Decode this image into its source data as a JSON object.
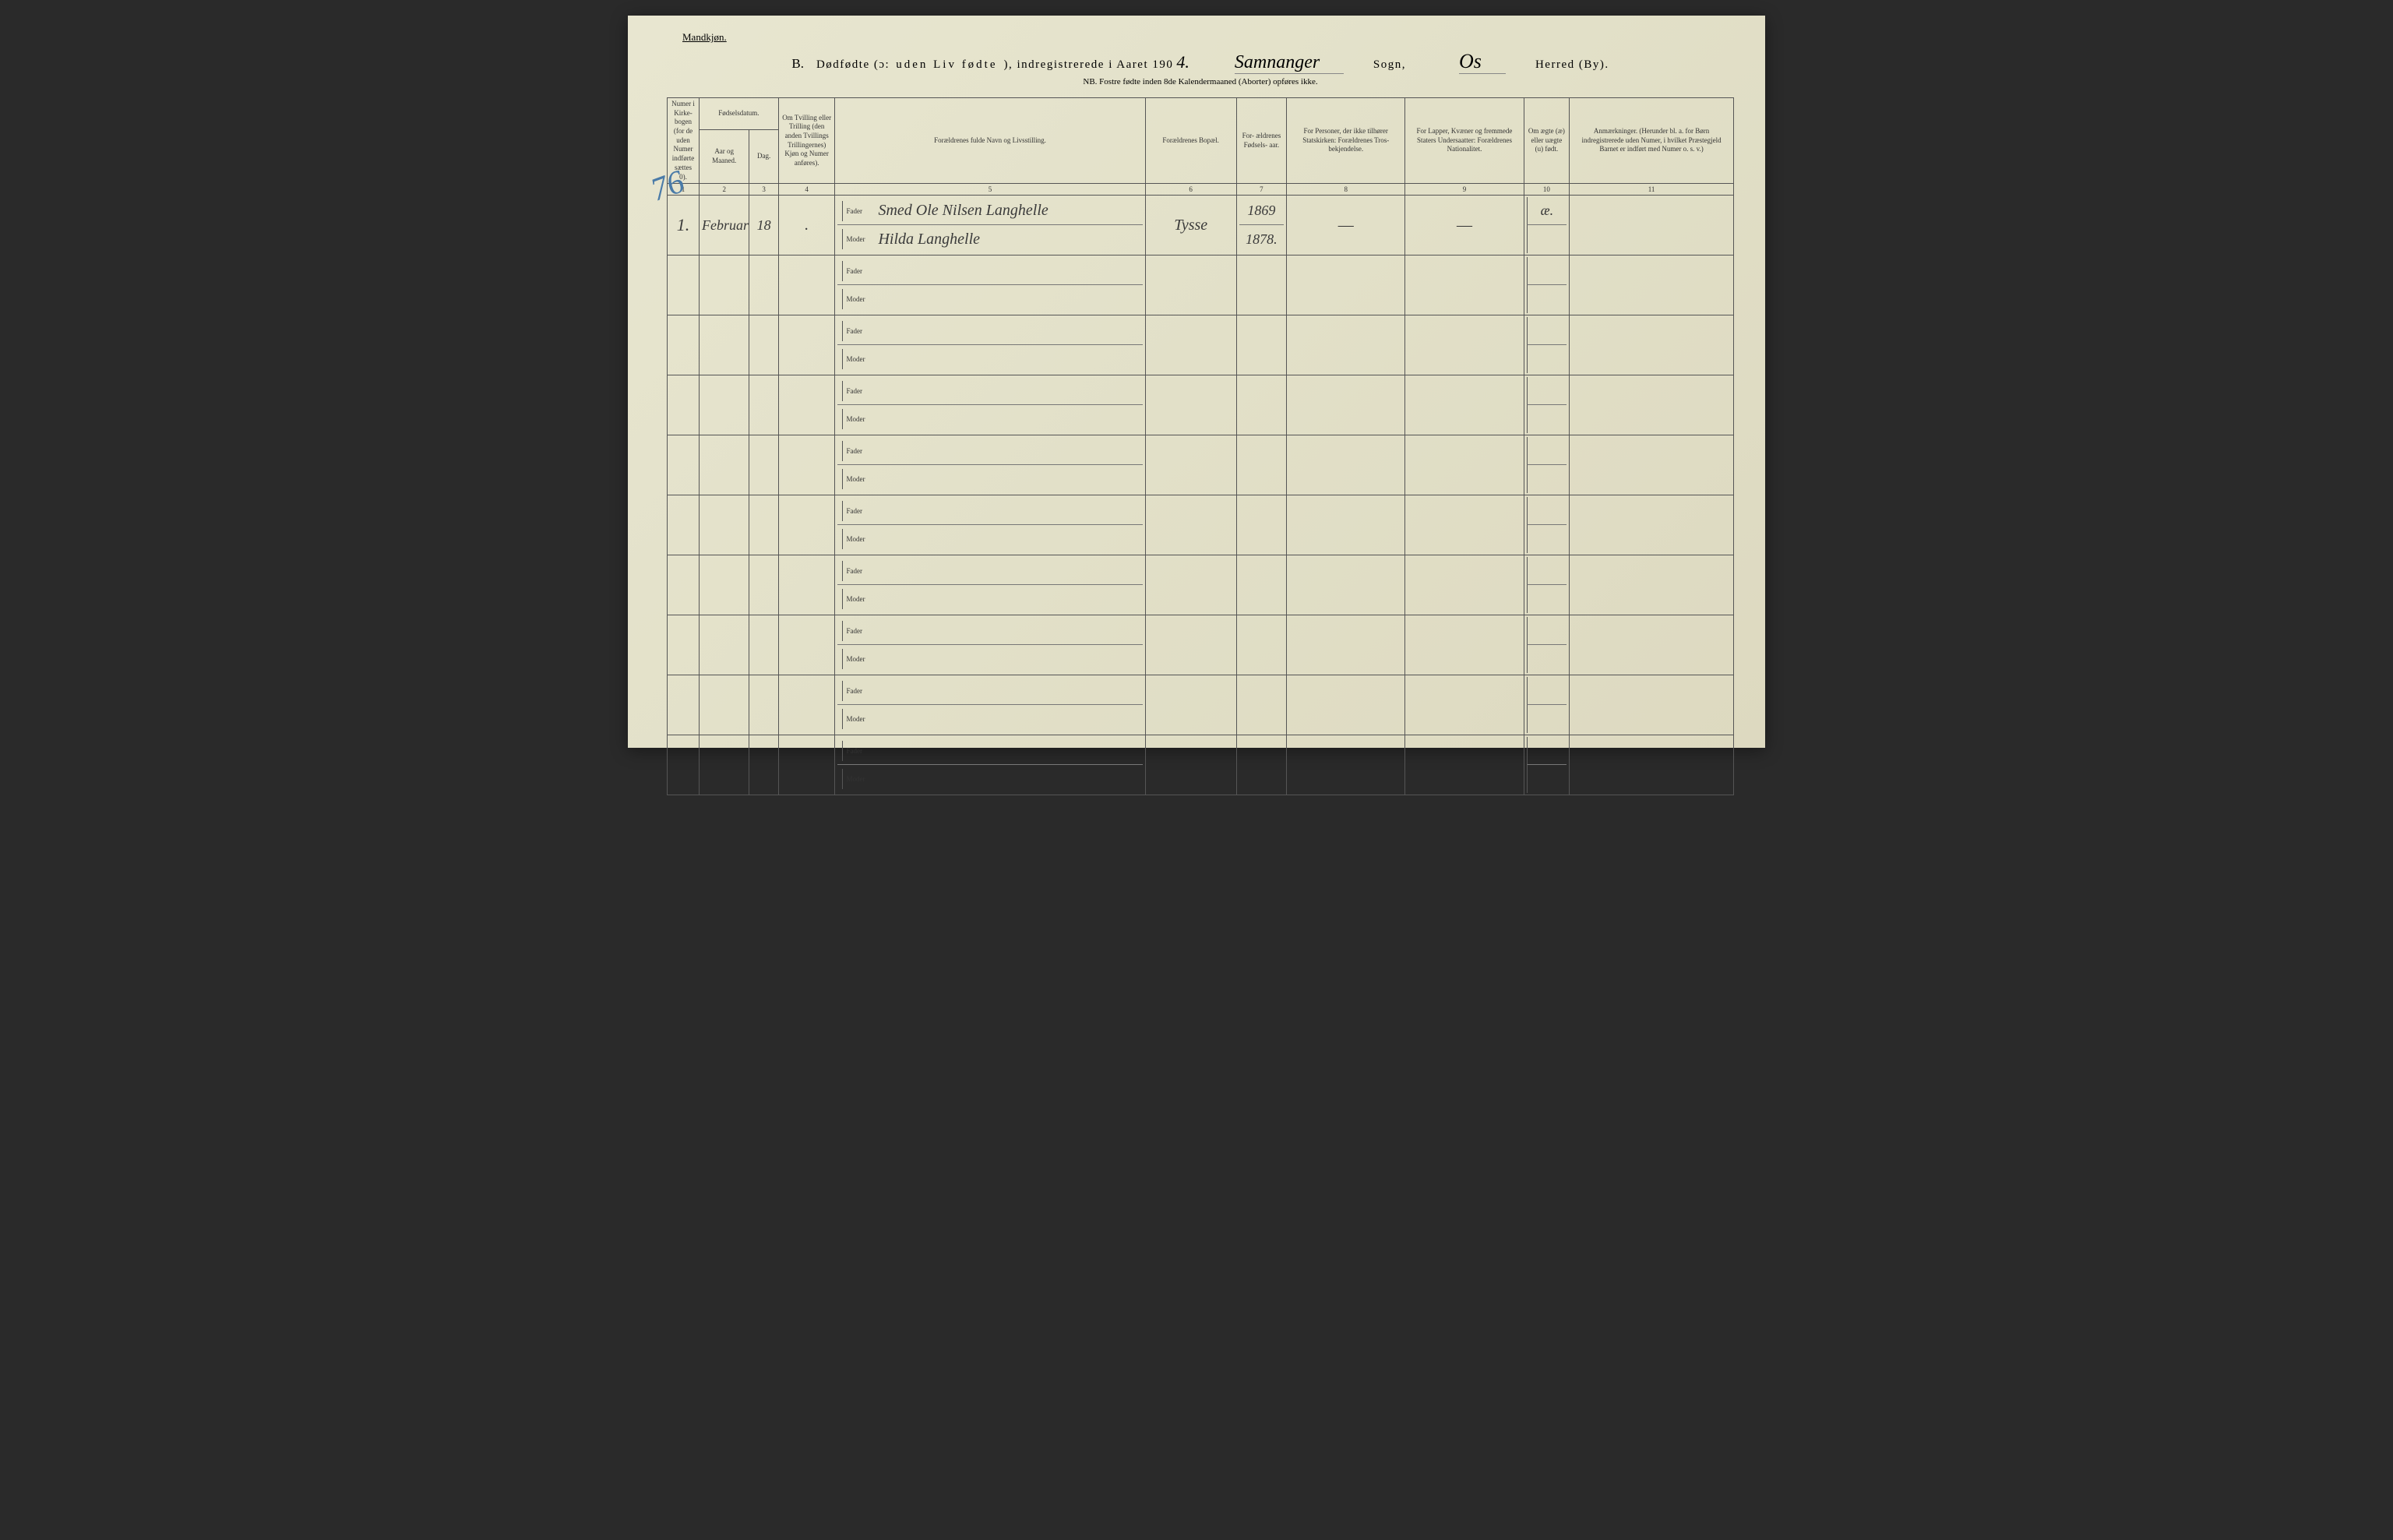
{
  "header": {
    "gender": "Mandkjøn.",
    "section_letter": "B.",
    "title_part1": "Dødfødte (ɔ:",
    "title_emphasis": "uden Liv fødte",
    "title_part2": "), indregistrerede i Aaret 190",
    "year_suffix": "4.",
    "sogn_value": "Samnanger",
    "sogn_label": "Sogn,",
    "herred_value": "Os",
    "herred_label": "Herred (By).",
    "nb": "NB.  Fostre fødte inden 8de Kalendermaaned (Aborter) opføres ikke."
  },
  "columns": {
    "c1": "Numer i Kirke- bogen (for de uden Numer indførte sættes 0).",
    "c2_group": "Fødselsdatum.",
    "c2": "Aar og Maaned.",
    "c3": "Dag.",
    "c4": "Om Tvilling eller Trilling (den anden Tvillings Trillingernes) Kjøn og Numer anføres).",
    "c5": "Forældrenes fulde Navn og Livsstilling.",
    "c6": "Forældrenes Bopæl.",
    "c7": "For- ældrenes Fødsels- aar.",
    "c8": "For Personer, der ikke tilhører Statskirken: Forældrenes Tros- bekjendelse.",
    "c9": "For Lapper, Kvæner og fremmede Staters Undersaatter: Forældrenes Nationalitet.",
    "c10": "Om ægte (æ) eller uægte (u) født.",
    "c11": "Anmærkninger. (Herunder bl. a. for Børn indregistrerede uden Numer, i hvilket Præstegjeld Barnet er indført med Numer o. s. v.)"
  },
  "colnums": [
    "1",
    "2",
    "3",
    "4",
    "5",
    "6",
    "7",
    "8",
    "9",
    "10",
    "11"
  ],
  "row_labels": {
    "fader": "Fader",
    "moder": "Moder"
  },
  "entry": {
    "page_mark": "76",
    "num": "1.",
    "month": "Februar",
    "day": "18",
    "tvilling": ".",
    "fader_name": "Smed Ole Nilsen Langhelle",
    "moder_name": "Hilda Langhelle",
    "bopael": "Tysse",
    "fader_year": "1869",
    "moder_year": "1878.",
    "c8": "—",
    "c9": "—",
    "c10": "æ."
  },
  "num_rows": 10
}
